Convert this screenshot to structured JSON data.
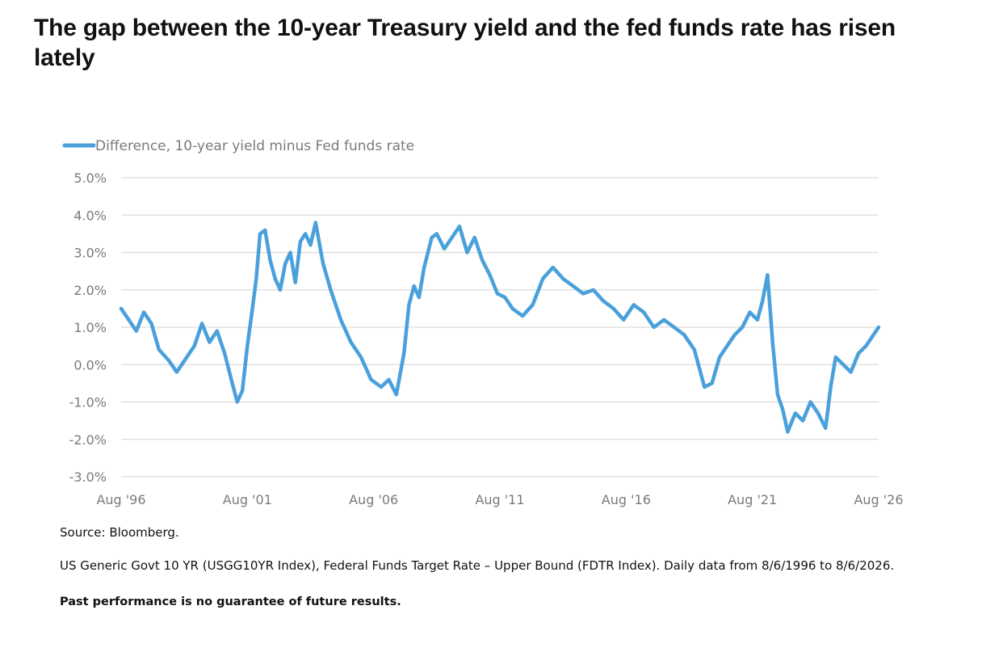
{
  "page": {
    "title": "The gap between the 10-year Treasury yield and the fed funds rate has risen lately",
    "source": "Source: Bloomberg.",
    "note": "US Generic Govt 10 YR (USGG10YR Index), Federal Funds Target Rate – Upper Bound (FDTR Index). Daily data from 8/6/1996 to 8/6/2026.",
    "disclaimer": "Past performance is no guarantee of future results."
  },
  "chart_data": {
    "type": "line",
    "title": "The gap between the 10-year Treasury yield and the fed funds rate has risen lately",
    "xlabel": "",
    "ylabel": "",
    "xlim": [
      1996.6,
      2026.6
    ],
    "ylim": [
      -3.0,
      5.0
    ],
    "x_ticks": [
      1996.6,
      2001.6,
      2006.6,
      2011.6,
      2016.6,
      2021.6,
      2026.6
    ],
    "x_tick_labels": [
      "Aug '96",
      "Aug '01",
      "Aug '06",
      "Aug '11",
      "Aug '16",
      "Aug '21",
      "Aug '26"
    ],
    "y_ticks": [
      5.0,
      4.0,
      3.0,
      2.0,
      1.0,
      0.0,
      -1.0,
      -2.0,
      -3.0
    ],
    "y_tick_labels": [
      "5.0%",
      "4.0%",
      "3.0%",
      "2.0%",
      "1.0%",
      "0.0%",
      "-1.0%",
      "-2.0%",
      "-3.0%"
    ],
    "grid": true,
    "legend_position": "top-left",
    "colors": {
      "series": "#4aa0db",
      "grid": "#dcdcdc",
      "tick_text": "#7a7a7a"
    },
    "series": [
      {
        "name": "Difference, 10-year yield minus Fed funds rate",
        "x": [
          1996.6,
          1996.9,
          1997.2,
          1997.5,
          1997.8,
          1998.1,
          1998.5,
          1998.8,
          1999.2,
          1999.5,
          1999.8,
          2000.1,
          2000.4,
          2000.7,
          2001.0,
          2001.2,
          2001.4,
          2001.6,
          2001.8,
          2001.95,
          2002.1,
          2002.3,
          2002.5,
          2002.7,
          2002.9,
          2003.1,
          2003.3,
          2003.5,
          2003.7,
          2003.9,
          2004.1,
          2004.3,
          2004.6,
          2004.9,
          2005.3,
          2005.7,
          2006.1,
          2006.5,
          2006.9,
          2007.2,
          2007.5,
          2007.8,
          2008.0,
          2008.2,
          2008.4,
          2008.6,
          2008.9,
          2009.1,
          2009.4,
          2009.7,
          2010.0,
          2010.3,
          2010.6,
          2010.9,
          2011.2,
          2011.5,
          2011.8,
          2012.1,
          2012.5,
          2012.9,
          2013.3,
          2013.7,
          2014.1,
          2014.5,
          2014.9,
          2015.3,
          2015.7,
          2016.1,
          2016.5,
          2016.9,
          2017.3,
          2017.7,
          2018.1,
          2018.5,
          2018.9,
          2019.3,
          2019.7,
          2020.0,
          2020.3,
          2020.6,
          2020.9,
          2021.2,
          2021.5,
          2021.8,
          2022.0,
          2022.2,
          2022.4,
          2022.6,
          2022.8,
          2023.0,
          2023.3,
          2023.6,
          2023.9,
          2024.2,
          2024.5,
          2024.7,
          2024.9,
          2025.2,
          2025.5,
          2025.8,
          2026.1,
          2026.4,
          2026.6
        ],
        "values": [
          1.5,
          1.2,
          0.9,
          1.4,
          1.1,
          0.4,
          0.1,
          -0.2,
          0.2,
          0.5,
          1.1,
          0.6,
          0.9,
          0.3,
          -0.5,
          -1.0,
          -0.7,
          0.5,
          1.5,
          2.3,
          3.5,
          3.6,
          2.8,
          2.3,
          2.0,
          2.7,
          3.0,
          2.2,
          3.3,
          3.5,
          3.2,
          3.8,
          2.7,
          2.0,
          1.2,
          0.6,
          0.2,
          -0.4,
          -0.6,
          -0.4,
          -0.8,
          0.3,
          1.6,
          2.1,
          1.8,
          2.6,
          3.4,
          3.5,
          3.1,
          3.4,
          3.7,
          3.0,
          3.4,
          2.8,
          2.4,
          1.9,
          1.8,
          1.5,
          1.3,
          1.6,
          2.3,
          2.6,
          2.3,
          2.1,
          1.9,
          2.0,
          1.7,
          1.5,
          1.2,
          1.6,
          1.4,
          1.0,
          1.2,
          1.0,
          0.8,
          0.4,
          -0.6,
          -0.5,
          0.2,
          0.5,
          0.8,
          1.0,
          1.4,
          1.2,
          1.7,
          2.4,
          0.6,
          -0.8,
          -1.2,
          -1.8,
          -1.3,
          -1.5,
          -1.0,
          -1.3,
          -1.7,
          -0.6,
          0.2,
          0.0,
          -0.2,
          0.3,
          0.5,
          0.8,
          1.0
        ]
      }
    ]
  }
}
